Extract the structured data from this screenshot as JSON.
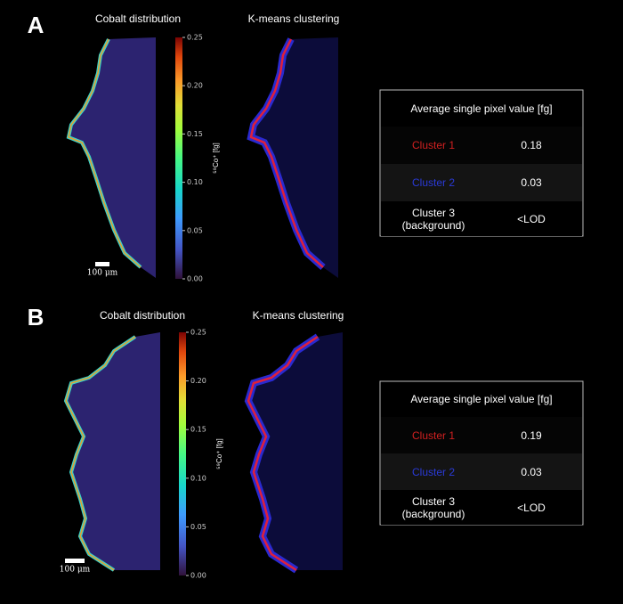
{
  "panels": [
    {
      "label": "A",
      "left_title": "Cobalt distribution",
      "right_title": "K-means clustering",
      "colorbar": {
        "label": "⁵⁹Co⁺ [fg]",
        "lim": [
          0,
          0.25
        ],
        "ticks": [
          {
            "value": 0,
            "label": "0.00"
          },
          {
            "value": 0.05,
            "label": "0.05"
          },
          {
            "value": 0.1,
            "label": "0.10"
          },
          {
            "value": 0.15,
            "label": "0.15"
          },
          {
            "value": 0.2,
            "label": "0.20"
          },
          {
            "value": 0.25,
            "label": "0.25"
          }
        ]
      },
      "scale_bar": "100 μm",
      "table": {
        "header": "Average single pixel value [fg]",
        "rows": [
          [
            "Cluster 1",
            "0.18"
          ],
          [
            "Cluster 2",
            "0.03"
          ],
          [
            "Cluster 3\n(background)",
            "<LOD"
          ]
        ]
      }
    },
    {
      "label": "B",
      "left_title": "Cobalt distribution",
      "right_title": "K-means clustering",
      "colorbar": {
        "label": "⁵⁹Co⁺ [fg]",
        "lim": [
          0,
          0.25
        ],
        "ticks": [
          {
            "value": 0,
            "label": "0.00"
          },
          {
            "value": 0.05,
            "label": "0.05"
          },
          {
            "value": 0.1,
            "label": "0.10"
          },
          {
            "value": 0.15,
            "label": "0.15"
          },
          {
            "value": 0.2,
            "label": "0.20"
          },
          {
            "value": 0.25,
            "label": "0.25"
          }
        ]
      },
      "scale_bar": "100 μm",
      "table": {
        "header": "Average single pixel value [fg]",
        "rows": [
          [
            "Cluster 1",
            "0.19"
          ],
          [
            "Cluster 2",
            "0.03"
          ],
          [
            "Cluster 3\n(background)",
            "<LOD"
          ]
        ]
      }
    }
  ]
}
